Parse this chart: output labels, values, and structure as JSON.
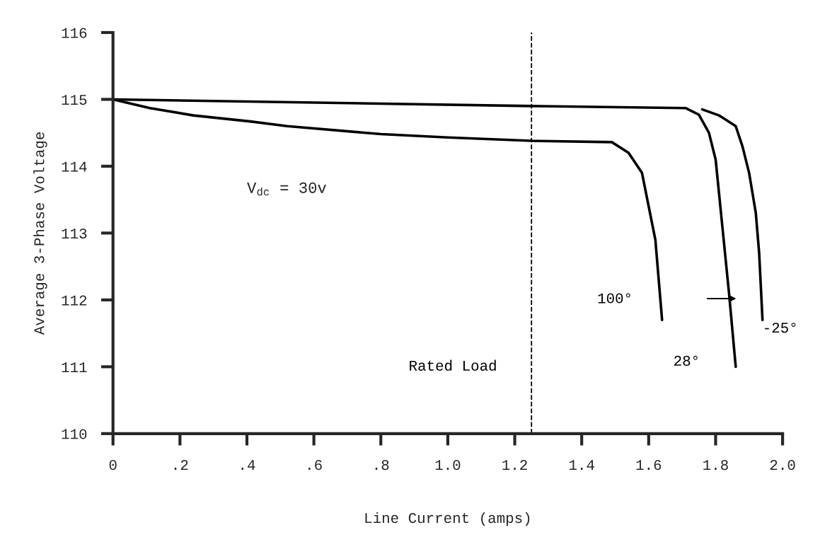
{
  "chart_data": {
    "type": "line",
    "xlabel": "Line Current (amps)",
    "ylabel": "Average 3-Phase Voltage",
    "xlim": [
      0,
      2.0
    ],
    "ylim": [
      110,
      116
    ],
    "xticks": [
      0,
      {
        "value": 0.2,
        "label": ".2"
      },
      {
        "value": 0.4,
        "label": ".4"
      },
      {
        "value": 0.6,
        "label": ".6"
      },
      {
        "value": 0.8,
        "label": ".8"
      },
      {
        "value": 1.0,
        "label": "1.0"
      },
      {
        "value": 1.2,
        "label": "1.2"
      },
      {
        "value": 1.4,
        "label": "1.4"
      },
      {
        "value": 1.6,
        "label": "1.6"
      },
      {
        "value": 1.8,
        "label": "1.8"
      },
      {
        "value": 2.0,
        "label": "2.0"
      }
    ],
    "yticks": [
      110,
      111,
      112,
      113,
      114,
      115,
      116
    ],
    "grid": false,
    "legend": false,
    "marker": "none",
    "line_style": "solid",
    "series": [
      {
        "name": "100°",
        "color": "#000000",
        "x": [
          0,
          0.11,
          0.24,
          0.41,
          0.52,
          0.8,
          1.0,
          1.25,
          1.49,
          1.54,
          1.58,
          1.6,
          1.62,
          1.63,
          1.64
        ],
        "values": [
          115.0,
          114.87,
          114.76,
          114.67,
          114.6,
          114.48,
          114.43,
          114.38,
          114.36,
          114.2,
          113.9,
          113.4,
          112.9,
          112.3,
          111.7
        ]
      },
      {
        "name": "28°",
        "color": "#000000",
        "x": [
          0,
          1.25,
          1.71,
          1.75,
          1.78,
          1.8,
          1.82,
          1.84,
          1.86
        ],
        "values": [
          115.0,
          114.9,
          114.87,
          114.77,
          114.5,
          114.1,
          113.1,
          112.1,
          111.0
        ]
      },
      {
        "name": "-25°",
        "color": "#000000",
        "x": [
          1.76,
          1.81,
          1.86,
          1.88,
          1.9,
          1.92,
          1.93,
          1.94
        ],
        "values": [
          114.85,
          114.76,
          114.6,
          114.3,
          113.9,
          113.3,
          112.7,
          111.7
        ]
      }
    ],
    "ref_lines": [
      {
        "axis": "x",
        "value": 1.25,
        "label": "Rated Load",
        "line_style": "dashed",
        "color": "#000000"
      }
    ],
    "annotations": [
      "V$_{dc}$ = 30v"
    ]
  }
}
